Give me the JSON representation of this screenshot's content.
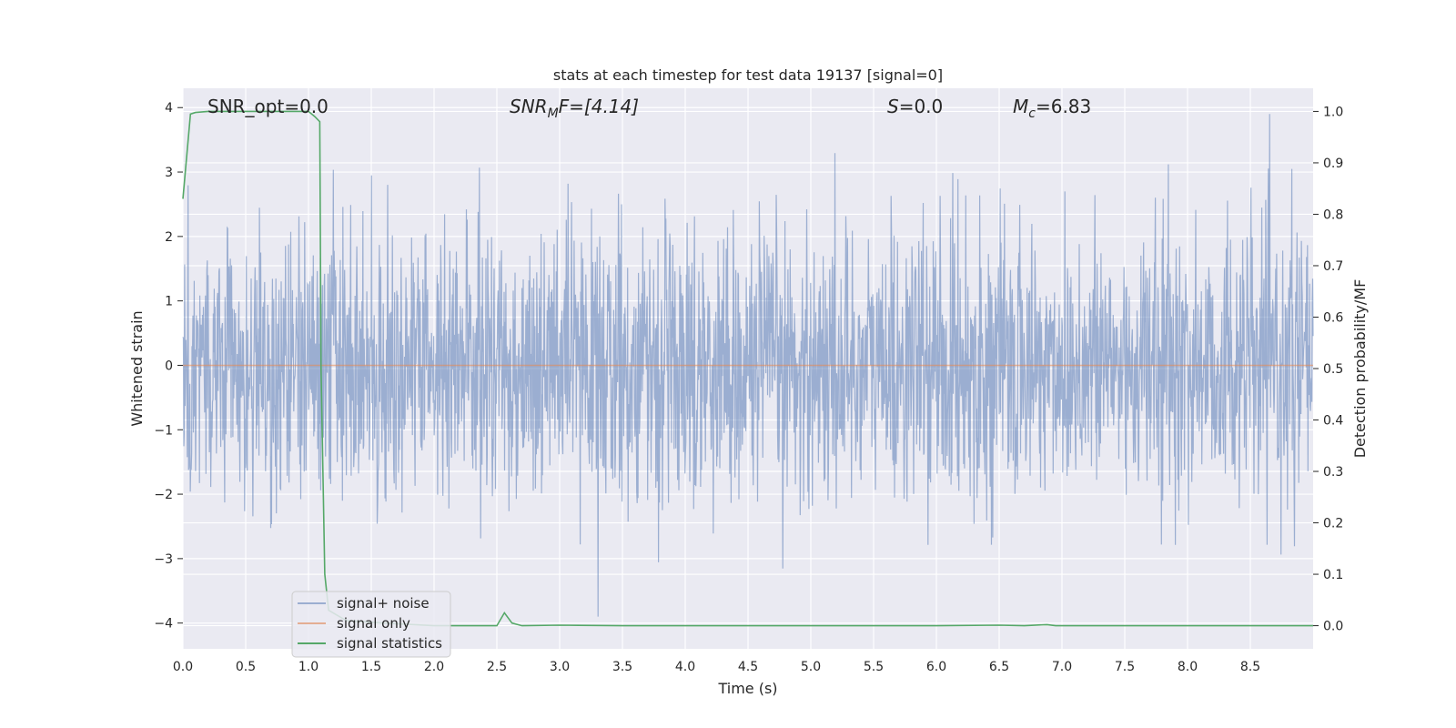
{
  "chart_data": {
    "type": "line",
    "title": "stats at each timestep for test data 19137 [signal=0]",
    "xlabel": "Time (s)",
    "ylabel_left": "Whitened strain",
    "ylabel_right": "Detection probability/MF",
    "xlim": [
      0.0,
      9.0
    ],
    "ylim_left": [
      -4.4,
      4.3
    ],
    "ylim_right": [
      -0.045,
      1.045
    ],
    "x_ticks": [
      "0.0",
      "0.5",
      "1.0",
      "1.5",
      "2.0",
      "2.5",
      "3.0",
      "3.5",
      "4.0",
      "4.5",
      "5.0",
      "5.5",
      "6.0",
      "6.5",
      "7.0",
      "7.5",
      "8.0",
      "8.5"
    ],
    "y_ticks_left": [
      "4",
      "3",
      "2",
      "1",
      "0",
      "−1",
      "−2",
      "−3",
      "−4"
    ],
    "y_ticks_right": [
      "1.0",
      "0.9",
      "0.8",
      "0.7",
      "0.6",
      "0.5",
      "0.4",
      "0.3",
      "0.2",
      "0.1",
      "0.0"
    ],
    "grid": true,
    "legend_position": "lower-left",
    "annotations": {
      "snr_opt": "SNR_opt=0.0",
      "snr_mf_main": "SNR",
      "snr_mf_sub": "M",
      "snr_mf_rest": "F=[4.14]",
      "s_main": "S",
      "s_rest": "=0.0",
      "mc_main": "M",
      "mc_sub": "c",
      "mc_rest": "=6.83"
    },
    "series": [
      {
        "name": "signal+ noise",
        "color": "#4c72b0",
        "axis": "left",
        "note": "whitened noise time series, approx. amplitude range -3.9 to 3.9 around 0"
      },
      {
        "name": "signal only",
        "color": "#dd8452",
        "axis": "left",
        "x": [
          0.0,
          9.0
        ],
        "y": [
          0.0,
          0.0
        ]
      },
      {
        "name": "signal statistics",
        "color": "#55a868",
        "axis": "right",
        "x": [
          0.0,
          0.06,
          0.1,
          0.2,
          0.5,
          0.8,
          1.0,
          1.05,
          1.09,
          1.1,
          1.13,
          1.16,
          1.3,
          1.6,
          2.0,
          2.25,
          2.5,
          2.56,
          2.62,
          2.7,
          3.0,
          3.5,
          4.0,
          5.0,
          6.0,
          6.5,
          6.7,
          6.88,
          6.95,
          7.0,
          8.0,
          9.0
        ],
        "y": [
          0.83,
          0.995,
          0.998,
          1.0,
          1.0,
          1.0,
          1.0,
          0.99,
          0.98,
          0.5,
          0.1,
          0.03,
          0.01,
          0.005,
          0.0,
          0.0,
          0.0,
          0.025,
          0.005,
          0.0,
          0.001,
          0.0,
          0.0,
          0.0,
          0.0,
          0.001,
          0.0,
          0.002,
          0.0,
          0.0,
          0.0,
          0.0
        ]
      }
    ]
  }
}
